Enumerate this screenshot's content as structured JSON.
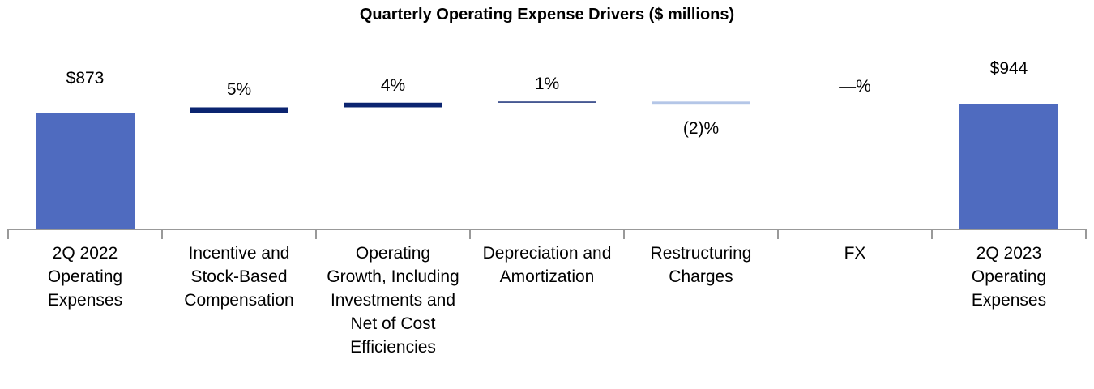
{
  "chart_data": {
    "type": "waterfall",
    "title": "Quarterly Operating Expense Drivers ($ millions)",
    "categories": [
      "2Q 2022 Operating Expenses",
      "Incentive and Stock-Based Compensation",
      "Operating Growth, Including Investments and Net of Cost Efficiencies",
      "Depreciation and Amortization",
      "Restructuring Charges",
      "FX",
      "2Q 2023 Operating Expenses"
    ],
    "measure": [
      "absolute",
      "relative",
      "relative",
      "relative",
      "relative",
      "relative",
      "absolute"
    ],
    "values": [
      873,
      5,
      4,
      1,
      -2,
      0,
      944
    ],
    "value_labels": [
      "$873",
      "5%",
      "4%",
      "1%",
      "(2)%",
      "—%",
      "$944"
    ],
    "colors": [
      "#4f6bbf",
      "#0b2470",
      "#0b2470",
      "#0b2470",
      "#b4c6e7",
      "#b4c6e7",
      "#4f6bbf"
    ]
  }
}
